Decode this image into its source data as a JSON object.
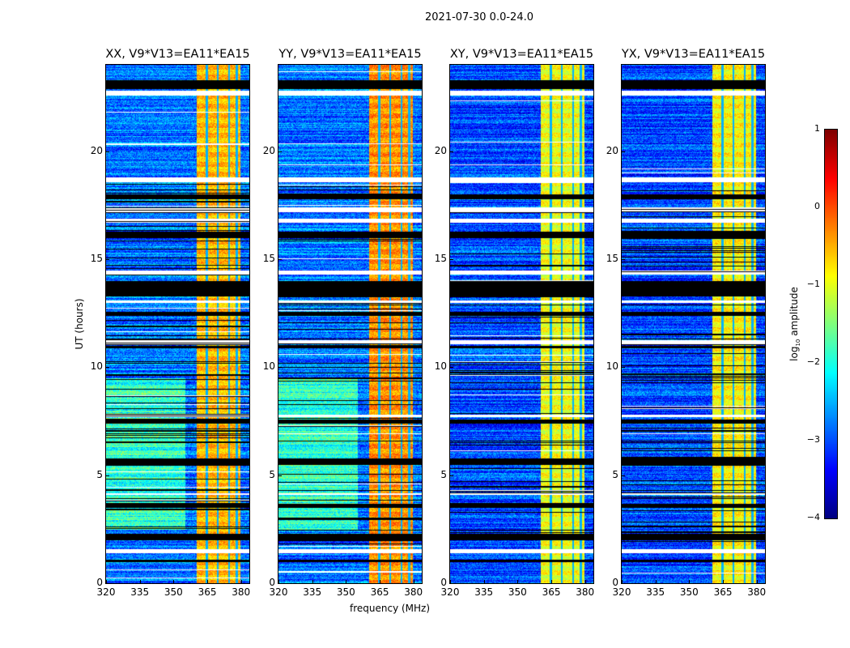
{
  "suptitle": "2021-07-30 0.0-24.0",
  "chart_data": {
    "type": "heatmap",
    "title": "2021-07-30 0.0-24.0",
    "xlabel": "frequency (MHz)",
    "ylabel": "UT (hours)",
    "xlim": [
      320,
      383.7
    ],
    "ylim": [
      0,
      24
    ],
    "xticks": [
      "320",
      "335",
      "350",
      "365",
      "380"
    ],
    "xtick_values": [
      320,
      335,
      350,
      365,
      380
    ],
    "yticks": [
      "0",
      "5",
      "10",
      "15",
      "20"
    ],
    "ytick_values": [
      0,
      5,
      10,
      15,
      20
    ],
    "panels": [
      {
        "title": "XX, V9*V13=EA11*EA15",
        "baseline": -2.8,
        "band_level": -0.6
      },
      {
        "title": "YY, V9*V13=EA11*EA15",
        "baseline": -2.8,
        "band_level": -0.4
      },
      {
        "title": "XY, V9*V13=EA11*EA15",
        "baseline": -3.0,
        "band_level": -1.0
      },
      {
        "title": "YX, V9*V13=EA11*EA15",
        "baseline": -3.0,
        "band_level": -0.9
      }
    ],
    "bright_band_mhz": [
      360.2,
      379.6
    ],
    "flagged_hours_black": [
      [
        22.9,
        23.3
      ],
      [
        17.8,
        18.0
      ],
      [
        16.0,
        16.3
      ],
      [
        13.3,
        14.0
      ],
      [
        12.4,
        12.6
      ],
      [
        10.9,
        11.0
      ],
      [
        7.4,
        7.6
      ],
      [
        5.5,
        5.8
      ],
      [
        3.5,
        3.7
      ],
      [
        2.0,
        2.3
      ],
      [
        1.0,
        1.1
      ]
    ],
    "gap_hours_white": [
      [
        22.6,
        22.8
      ],
      [
        18.6,
        18.8
      ],
      [
        17.2,
        17.4
      ],
      [
        16.7,
        16.9
      ],
      [
        14.3,
        14.5
      ],
      [
        13.0,
        13.1
      ],
      [
        11.1,
        11.25
      ],
      [
        7.7,
        7.8
      ],
      [
        4.1,
        4.2
      ],
      [
        1.4,
        1.6
      ]
    ],
    "colorbar": {
      "label": "log10 amplitude",
      "label_base": "log",
      "label_sub": "10",
      "label_rest": " amplitude",
      "range": [
        -4,
        1
      ],
      "ticks": [
        "1",
        "0",
        "−1",
        "−2",
        "−3",
        "−4"
      ],
      "tick_values": [
        1,
        0,
        -1,
        -2,
        -3,
        -4
      ],
      "colormap": "jet"
    }
  }
}
